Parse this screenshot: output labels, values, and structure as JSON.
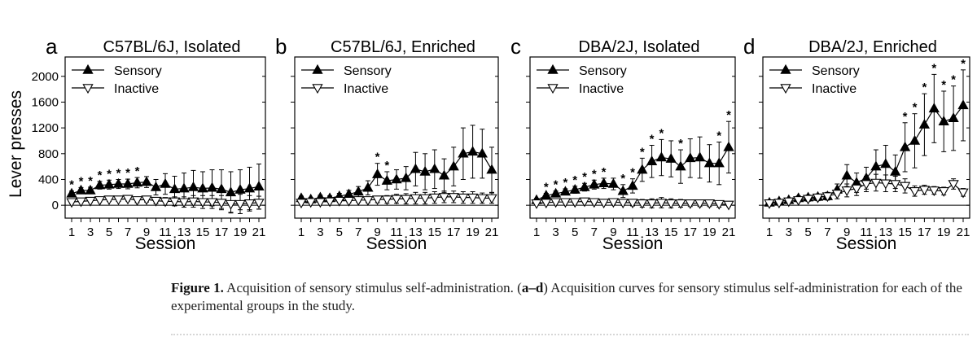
{
  "caption": {
    "label": "Figure 1.",
    "text_before": "Acquisition of sensory stimulus self-administration. (",
    "panels_ref": "a–d",
    "text_after": ") Acquisition curves for sensory stimulus self-administration for each of the experimental groups in the study."
  },
  "chart_data": [
    {
      "type": "line",
      "panel": "a",
      "title": "C57BL/6J, Isolated",
      "xlabel": "Session",
      "ylabel": "Lever presses",
      "ylim": [
        -200,
        2300
      ],
      "yticks": [
        0,
        400,
        800,
        1200,
        1600,
        2000
      ],
      "xticks": [
        1,
        3,
        5,
        7,
        9,
        11,
        13,
        15,
        17,
        19,
        21
      ],
      "legend": [
        "Sensory",
        "Inactive"
      ],
      "x": [
        1,
        2,
        3,
        4,
        5,
        6,
        7,
        8,
        9,
        10,
        11,
        12,
        13,
        14,
        15,
        16,
        17,
        18,
        19,
        20,
        21
      ],
      "series": [
        {
          "name": "Sensory",
          "marker": "filled-triangle-up",
          "values": [
            180,
            230,
            230,
            310,
            320,
            330,
            330,
            350,
            360,
            280,
            330,
            250,
            260,
            280,
            260,
            270,
            250,
            200,
            240,
            260,
            290
          ],
          "errors": [
            40,
            45,
            50,
            60,
            70,
            70,
            75,
            80,
            85,
            120,
            160,
            200,
            240,
            260,
            260,
            280,
            300,
            320,
            310,
            330,
            350
          ]
        },
        {
          "name": "Inactive",
          "marker": "open-triangle-down",
          "values": [
            50,
            60,
            70,
            80,
            90,
            90,
            100,
            80,
            90,
            70,
            60,
            60,
            50,
            60,
            50,
            50,
            40,
            20,
            20,
            30,
            40
          ],
          "errors": [
            20,
            20,
            25,
            25,
            30,
            30,
            35,
            40,
            40,
            45,
            60,
            70,
            80,
            90,
            100,
            100,
            110,
            130,
            150,
            120,
            100
          ]
        }
      ],
      "significance": {
        "symbol": "*",
        "sessions": [
          1,
          2,
          3,
          4,
          5,
          6,
          7,
          8
        ]
      }
    },
    {
      "type": "line",
      "panel": "b",
      "title": "C57BL/6J, Enriched",
      "xlabel": "Session",
      "ylabel": "",
      "ylim": [
        -200,
        2300
      ],
      "yticks": [
        0,
        400,
        800,
        1200,
        1600,
        2000
      ],
      "xticks": [
        1,
        3,
        5,
        7,
        9,
        11,
        13,
        15,
        17,
        19,
        21
      ],
      "legend": [
        "Sensory",
        "Inactive"
      ],
      "x": [
        1,
        2,
        3,
        4,
        5,
        6,
        7,
        8,
        9,
        10,
        11,
        12,
        13,
        14,
        15,
        16,
        17,
        18,
        19,
        20,
        21
      ],
      "series": [
        {
          "name": "Sensory",
          "marker": "filled-triangle-up",
          "values": [
            110,
            90,
            120,
            110,
            140,
            170,
            210,
            270,
            480,
            380,
            400,
            420,
            560,
            520,
            560,
            460,
            600,
            800,
            830,
            800,
            550
          ],
          "errors": [
            30,
            30,
            35,
            35,
            45,
            60,
            80,
            110,
            170,
            140,
            150,
            180,
            260,
            280,
            300,
            260,
            300,
            400,
            410,
            380,
            350
          ]
        },
        {
          "name": "Inactive",
          "marker": "open-triangle-down",
          "values": [
            40,
            50,
            50,
            60,
            70,
            70,
            80,
            80,
            90,
            90,
            100,
            100,
            110,
            110,
            120,
            130,
            130,
            120,
            120,
            110,
            110
          ],
          "errors": [
            15,
            20,
            20,
            20,
            25,
            30,
            30,
            40,
            50,
            60,
            70,
            80,
            90,
            90,
            90,
            90,
            90,
            90,
            90,
            80,
            80
          ]
        }
      ],
      "significance": {
        "symbol": "*",
        "sessions": [
          9,
          10
        ]
      }
    },
    {
      "type": "line",
      "panel": "c",
      "title": "DBA/2J, Isolated",
      "xlabel": "Session",
      "ylabel": "",
      "ylim": [
        -200,
        2300
      ],
      "yticks": [
        0,
        400,
        800,
        1200,
        1600,
        2000
      ],
      "xticks": [
        1,
        3,
        5,
        7,
        9,
        11,
        13,
        15,
        17,
        19,
        21
      ],
      "legend": [
        "Sensory",
        "Inactive"
      ],
      "x": [
        1,
        2,
        3,
        4,
        5,
        6,
        7,
        8,
        9,
        10,
        11,
        12,
        13,
        14,
        15,
        16,
        17,
        18,
        19,
        20,
        21
      ],
      "series": [
        {
          "name": "Sensory",
          "marker": "filled-triangle-up",
          "values": [
            80,
            150,
            180,
            210,
            240,
            280,
            320,
            340,
            330,
            220,
            300,
            550,
            680,
            740,
            720,
            600,
            730,
            740,
            650,
            650,
            900
          ],
          "errors": [
            25,
            35,
            40,
            45,
            55,
            60,
            70,
            80,
            90,
            100,
            110,
            180,
            250,
            280,
            280,
            260,
            300,
            320,
            290,
            330,
            400
          ]
        },
        {
          "name": "Inactive",
          "marker": "open-triangle-down",
          "values": [
            30,
            40,
            50,
            50,
            50,
            60,
            50,
            40,
            50,
            40,
            40,
            30,
            30,
            40,
            30,
            30,
            30,
            30,
            30,
            20,
            10
          ],
          "errors": [
            15,
            20,
            20,
            20,
            25,
            25,
            30,
            30,
            35,
            40,
            50,
            60,
            70,
            80,
            70,
            60,
            50,
            50,
            50,
            50,
            30
          ]
        }
      ],
      "significance": {
        "symbol": "*",
        "sessions": [
          2,
          3,
          4,
          5,
          6,
          7,
          8,
          10,
          11,
          12,
          13,
          14,
          16,
          20,
          21
        ]
      }
    },
    {
      "type": "line",
      "panel": "d",
      "title": "DBA/2J, Enriched",
      "xlabel": "Session",
      "ylabel": "",
      "ylim": [
        -200,
        2300
      ],
      "yticks": [
        0,
        400,
        800,
        1200,
        1600,
        2000
      ],
      "xticks": [
        1,
        3,
        5,
        7,
        9,
        11,
        13,
        15,
        17,
        19,
        21
      ],
      "legend": [
        "Sensory",
        "Inactive"
      ],
      "x": [
        1,
        2,
        3,
        4,
        5,
        6,
        7,
        8,
        9,
        10,
        11,
        12,
        13,
        14,
        15,
        16,
        17,
        18,
        19,
        20,
        21
      ],
      "series": [
        {
          "name": "Sensory",
          "marker": "filled-triangle-up",
          "values": [
            40,
            60,
            80,
            110,
            120,
            130,
            140,
            240,
            460,
            350,
            420,
            600,
            640,
            520,
            900,
            1000,
            1250,
            1500,
            1300,
            1350,
            1550
          ],
          "errors": [
            20,
            25,
            30,
            35,
            40,
            45,
            55,
            90,
            170,
            150,
            170,
            260,
            290,
            260,
            380,
            420,
            480,
            530,
            470,
            500,
            550
          ]
        },
        {
          "name": "Inactive",
          "marker": "open-triangle-down",
          "values": [
            30,
            40,
            60,
            80,
            100,
            120,
            140,
            180,
            230,
            260,
            330,
            350,
            340,
            330,
            300,
            220,
            240,
            230,
            220,
            330,
            200
          ],
          "errors": [
            15,
            20,
            25,
            30,
            40,
            50,
            60,
            80,
            100,
            110,
            120,
            130,
            130,
            120,
            110,
            80,
            70,
            60,
            60,
            80,
            60
          ]
        }
      ],
      "significance": {
        "symbol": "*",
        "sessions": [
          15,
          16,
          17,
          18,
          19,
          20,
          21
        ]
      }
    }
  ]
}
